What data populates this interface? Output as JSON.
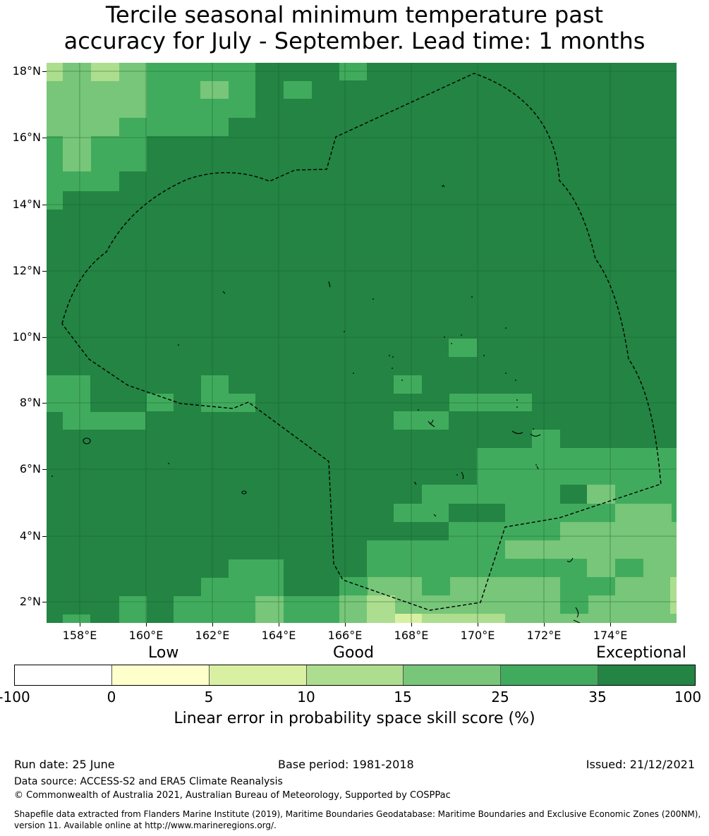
{
  "title_line1": "Tercile seasonal minimum temperature past",
  "title_line2": "accuracy for July - September. Lead time: 1 months",
  "map": {
    "latitude_labels": [
      "18°N",
      "16°N",
      "14°N",
      "12°N",
      "10°N",
      "8°N",
      "6°N",
      "4°N",
      "2°N"
    ],
    "longitude_labels": [
      "158°E",
      "160°E",
      "162°E",
      "164°E",
      "166°E",
      "168°E",
      "170°E",
      "172°E",
      "174°E"
    ],
    "boundary_style": "dashed black line (EEZ boundary)",
    "dominant_category": "35 to 100 (Exceptional)"
  },
  "legend": {
    "category_low": "Low",
    "category_good": "Good",
    "category_exceptional": "Exceptional",
    "ticks": [
      "-100",
      "0",
      "5",
      "10",
      "15",
      "25",
      "35",
      "100"
    ],
    "colors": [
      "#ffffff",
      "#ffffcc",
      "#d9f0a3",
      "#addd8e",
      "#78c679",
      "#41ab5d",
      "#238443"
    ],
    "label": "Linear error in probability space skill score (%)"
  },
  "footer": {
    "run_date": "Run date: 25 June",
    "base_period": "Base period: 1981-2018",
    "issued": "Issued: 21/12/2021",
    "data_source": "Data source: ACCESS-S2 and ERA5 Climate Reanalysis",
    "copyright": "© Commonwealth of Australia 2021, Australian Bureau of Meteorology, Supported by COSPPac",
    "shapefile_line1": "Shapefile data extracted from Flanders Marine Institute (2019), Maritime Boundaries Geodatabase: Maritime Boundaries and Exclusive Economic Zones (200NM),",
    "shapefile_line2": "version 11. Available online at http://www.marineregions.org/."
  }
}
